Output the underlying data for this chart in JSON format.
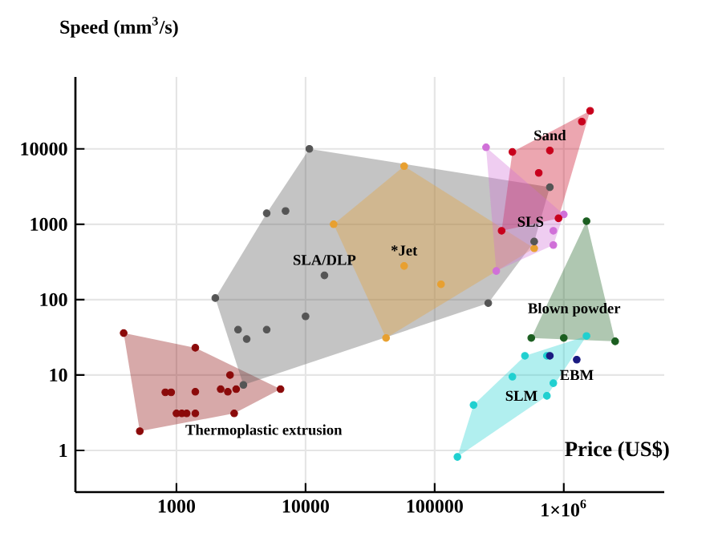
{
  "chart_data": {
    "type": "scatter",
    "xlabel": "Price (US$)",
    "ylabel": "Speed (mm$^{3}$/s)",
    "log": "xy",
    "grid": true,
    "marker": "circle",
    "xlim": [
      165,
      6000000
    ],
    "ylim": [
      0.28,
      90000
    ],
    "xticks": [
      1000,
      10000,
      100000,
      {
        "value": 1000000,
        "label": "1×10$^{6}$"
      }
    ],
    "yticks": [
      1,
      10,
      100,
      1000,
      10000
    ],
    "series": [
      {
        "name": "Thermoplastic extrusion",
        "color": "#8b0a0a",
        "x": [
          390,
          520,
          1400,
          2600,
          820,
          910,
          1400,
          2200,
          2500,
          2900,
          6400,
          1000,
          1100,
          1200,
          1400,
          2800
        ],
        "values": [
          36,
          1.8,
          23,
          10,
          5.9,
          5.9,
          6,
          6.5,
          6,
          6.5,
          6.5,
          3.1,
          3.1,
          3.1,
          3.1,
          3.1
        ]
      },
      {
        "name": "SLA/DLP",
        "color": "#555555",
        "x": [
          10700,
          5000,
          7000,
          14000,
          2000,
          3000,
          3500,
          5000,
          10000,
          260000,
          780000,
          590000,
          3300
        ],
        "values": [
          10000,
          1400,
          1500,
          210,
          105,
          40,
          30,
          40,
          60,
          90,
          3100,
          590,
          7.4
        ]
      },
      {
        "name": "*Jet",
        "color": "#e8a030",
        "x": [
          16500,
          58000,
          58000,
          112000,
          42000,
          590000
        ],
        "values": [
          1000,
          5900,
          280,
          160,
          31,
          480
        ]
      },
      {
        "name": "Sand",
        "color": "#c8001c",
        "x": [
          1600000,
          1380000,
          400000,
          780000,
          640000,
          910000,
          330000
        ],
        "values": [
          32000,
          23000,
          9100,
          9500,
          4800,
          1200,
          820
        ]
      },
      {
        "name": "SLS",
        "color": "#d070d8",
        "x": [
          250000,
          1000000,
          830000,
          830000,
          300000
        ],
        "values": [
          10500,
          1350,
          820,
          530,
          240
        ]
      },
      {
        "name": "Blown powder",
        "color": "#1b5e20",
        "x": [
          1500000,
          560000,
          1000000,
          2500000
        ],
        "values": [
          1100,
          31,
          31,
          28
        ]
      },
      {
        "name": "EBM",
        "color": "#1a1a80",
        "x": [
          1260000,
          780000
        ],
        "values": [
          16,
          18
        ]
      },
      {
        "name": "SLM",
        "color": "#20d0d0",
        "x": [
          150000,
          200000,
          400000,
          500000,
          740000,
          830000,
          740000,
          1500000
        ],
        "values": [
          0.82,
          4,
          9.5,
          18,
          18,
          7.8,
          5.3,
          33
        ]
      }
    ]
  }
}
